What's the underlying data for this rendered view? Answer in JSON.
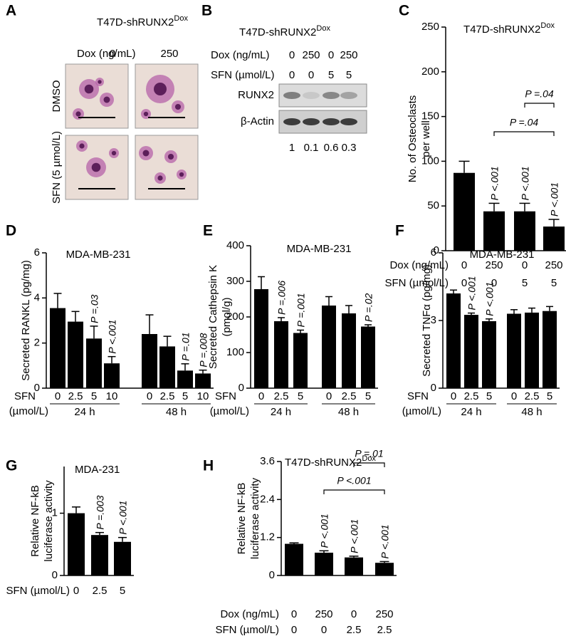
{
  "panel_a": {
    "label": "A",
    "title": "T47D-shRUNX2",
    "title_sup": "Dox",
    "column_header": "Dox (ng/mL)",
    "columns": [
      "0",
      "250"
    ],
    "rows": [
      "DMSO",
      "SFN (5 µmol/L)"
    ]
  },
  "panel_b": {
    "label": "B",
    "title": "T47D-shRUNX2",
    "title_sup": "Dox",
    "conditions": [
      {
        "name": "Dox (ng/mL)",
        "labels": [
          "0",
          "250",
          "0",
          "250"
        ]
      },
      {
        "name": "SFN (µmol/L)",
        "labels": [
          "0",
          "0",
          "5",
          "5"
        ]
      }
    ],
    "bands": [
      "RUNX2",
      "β-Actin"
    ],
    "quantification": [
      1,
      0.1,
      0.6,
      0.3
    ]
  },
  "chart_data": [
    {
      "type": "bar",
      "label": "C",
      "title": "T47D-shRUNX2",
      "title_sup": "Dox",
      "ylabel": [
        "No. of Osteoclasts",
        "per well"
      ],
      "color": "#000000",
      "ylim": [
        0,
        250
      ],
      "yticks": [
        0,
        50,
        100,
        150,
        200,
        250
      ],
      "values": [
        87,
        44,
        44,
        27
      ],
      "errors": [
        13,
        9,
        9,
        8
      ],
      "annotations": [
        null,
        "P <.001",
        "P <.001",
        "P <.001"
      ],
      "brackets": [
        {
          "from": 1,
          "to": 3,
          "text": "P =.04"
        },
        {
          "from": 2,
          "to": 3,
          "text": "P =.04"
        }
      ],
      "category_rows": [
        {
          "name": "Dox (ng/mL)",
          "labels": [
            "0",
            "250",
            "0",
            "250"
          ]
        },
        {
          "name": "SFN (µmol/L)",
          "labels": [
            "0",
            "0",
            "5",
            "5"
          ]
        }
      ]
    },
    {
      "type": "bar",
      "label": "D",
      "title": "MDA-MB-231",
      "ylabel": "Secreted RANKL (pg/mg)",
      "color": "#000000",
      "ylim": [
        0,
        6
      ],
      "yticks": [
        0,
        2,
        4,
        6
      ],
      "values": [
        3.55,
        2.95,
        2.2,
        1.1,
        2.4,
        1.85,
        0.78,
        0.65
      ],
      "errors": [
        0.65,
        0.45,
        0.55,
        0.3,
        0.85,
        0.45,
        0.3,
        0.15
      ],
      "annotations": [
        null,
        null,
        "P =.03",
        "P <.001",
        null,
        null,
        "P =.01",
        "P =.008"
      ],
      "category_rows": [
        {
          "name": [
            "SFN",
            "(µmol/L)"
          ],
          "labels": [
            "0",
            "2.5",
            "5",
            "10",
            "0",
            "2.5",
            "5",
            "10"
          ]
        }
      ],
      "group_labels": [
        "24 h",
        "48 h"
      ]
    },
    {
      "type": "bar",
      "label": "E",
      "title": "MDA-MB-231",
      "ylabel": [
        "Secreted Cathepsin K",
        "(pmol/g)"
      ],
      "color": "#000000",
      "ylim": [
        0,
        400
      ],
      "yticks": [
        0,
        100,
        200,
        300,
        400
      ],
      "values": [
        278,
        188,
        155,
        232,
        210,
        173
      ],
      "errors": [
        35,
        10,
        8,
        25,
        22,
        5
      ],
      "annotations": [
        null,
        "P =.006",
        "P =.001",
        null,
        null,
        "P =.02"
      ],
      "category_rows": [
        {
          "name": [
            "SFN",
            "(µmol/L)"
          ],
          "labels": [
            "0",
            "2.5",
            "5",
            "0",
            "2.5",
            "5"
          ]
        }
      ],
      "group_labels": [
        "24 h",
        "48 h"
      ]
    },
    {
      "type": "bar",
      "label": "F",
      "title": "MDA-MB-231",
      "ylabel": "Secreted TNFα (pg/mg)",
      "color": "#000000",
      "ylim": [
        0,
        6
      ],
      "yticks": [
        0,
        3,
        6
      ],
      "values": [
        4.2,
        3.25,
        2.97,
        3.3,
        3.35,
        3.42
      ],
      "errors": [
        0.15,
        0.08,
        0.1,
        0.18,
        0.2,
        0.2
      ],
      "annotations": [
        null,
        "P <.001",
        "P <.001",
        null,
        null,
        null
      ],
      "category_rows": [
        {
          "name": [
            "SFN",
            "(µmol/L)"
          ],
          "labels": [
            "0",
            "2.5",
            "5",
            "0",
            "2.5",
            "5"
          ]
        }
      ],
      "group_labels": [
        "24 h",
        "48 h"
      ]
    },
    {
      "type": "bar",
      "label": "G",
      "title": "MDA-231",
      "ylabel": [
        "Relative NF-kB",
        "luciferase activity"
      ],
      "color": "#000000",
      "ylim": [
        0,
        1.75
      ],
      "yticks": [
        0,
        1
      ],
      "values": [
        1.0,
        0.65,
        0.54
      ],
      "errors": [
        0.1,
        0.04,
        0.07
      ],
      "annotations": [
        null,
        "P =.003",
        "P <.001"
      ],
      "category_rows": [
        {
          "name": "SFN (µmol/L)",
          "labels": [
            "0",
            "2.5",
            "5"
          ]
        }
      ]
    },
    {
      "type": "bar",
      "label": "H",
      "title": "T47D-shRUNX2",
      "title_sup": "Dox",
      "ylabel": [
        "Relative NF-kB",
        "luciferase activity"
      ],
      "color": "#000000",
      "ylim": [
        0,
        3.6
      ],
      "yticks": [
        0,
        1.2,
        2.4,
        3.6
      ],
      "values": [
        1.0,
        0.72,
        0.57,
        0.4
      ],
      "errors": [
        0.03,
        0.06,
        0.04,
        0.04
      ],
      "annotations": [
        null,
        "P <.001",
        "P <.001",
        "P <.001"
      ],
      "brackets": [
        {
          "from": 1,
          "to": 3,
          "text": "P <.001"
        },
        {
          "from": 2,
          "to": 3,
          "text": "P =.01"
        }
      ],
      "category_rows": [
        {
          "name": "Dox (ng/mL)",
          "labels": [
            "0",
            "250",
            "0",
            "250"
          ]
        },
        {
          "name": "SFN (µmol/L)",
          "labels": [
            "0",
            "0",
            "2.5",
            "2.5"
          ]
        }
      ]
    }
  ]
}
